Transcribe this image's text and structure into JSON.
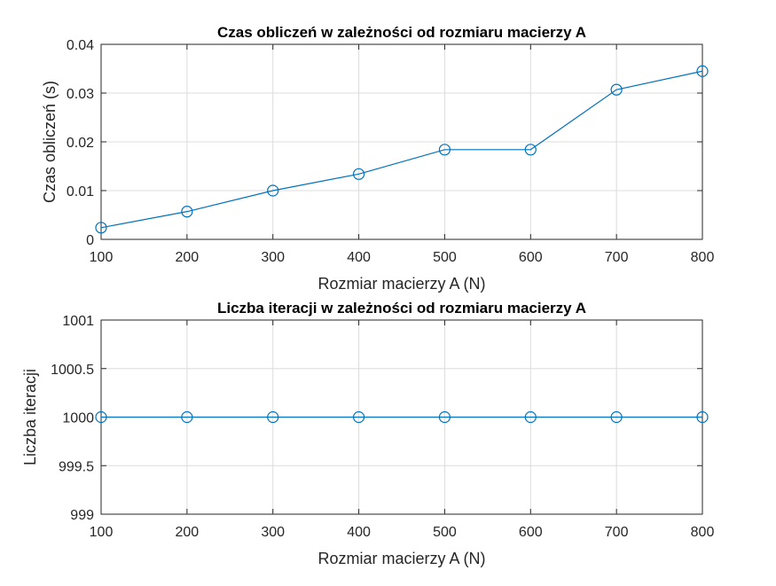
{
  "chart_data": [
    {
      "type": "line",
      "title": "Czas obliczeń w zależności od rozmiaru macierzy A",
      "xlabel": "Rozmiar macierzy A (N)",
      "ylabel": "Czas obliczeń (s)",
      "x": [
        100,
        200,
        300,
        400,
        500,
        600,
        700,
        800
      ],
      "series": [
        {
          "values": [
            0.0024,
            0.0057,
            0.01,
            0.0134,
            0.0184,
            0.0184,
            0.0307,
            0.0345
          ]
        }
      ],
      "xlim": [
        100,
        800
      ],
      "ylim": [
        0,
        0.04
      ],
      "xticks": [
        "100",
        "200",
        "300",
        "400",
        "500",
        "600",
        "700",
        "800"
      ],
      "yticks": [
        "0",
        "0.01",
        "0.02",
        "0.03",
        "0.04"
      ],
      "ytick_values": [
        0,
        0.01,
        0.02,
        0.03,
        0.04
      ],
      "grid": true,
      "marker": "circle",
      "color": "#0072bd"
    },
    {
      "type": "line",
      "title": "Liczba iteracji w zależności od rozmiaru macierzy A",
      "xlabel": "Rozmiar macierzy A (N)",
      "ylabel": "Liczba iteracji",
      "x": [
        100,
        200,
        300,
        400,
        500,
        600,
        700,
        800
      ],
      "series": [
        {
          "values": [
            1000,
            1000,
            1000,
            1000,
            1000,
            1000,
            1000,
            1000
          ]
        }
      ],
      "xlim": [
        100,
        800
      ],
      "ylim": [
        999,
        1001
      ],
      "xticks": [
        "100",
        "200",
        "300",
        "400",
        "500",
        "600",
        "700",
        "800"
      ],
      "yticks": [
        "999",
        "999.5",
        "1000",
        "1000.5",
        "1001"
      ],
      "ytick_values": [
        999,
        999.5,
        1000,
        1000.5,
        1001
      ],
      "grid": true,
      "marker": "circle",
      "color": "#0072bd"
    }
  ]
}
